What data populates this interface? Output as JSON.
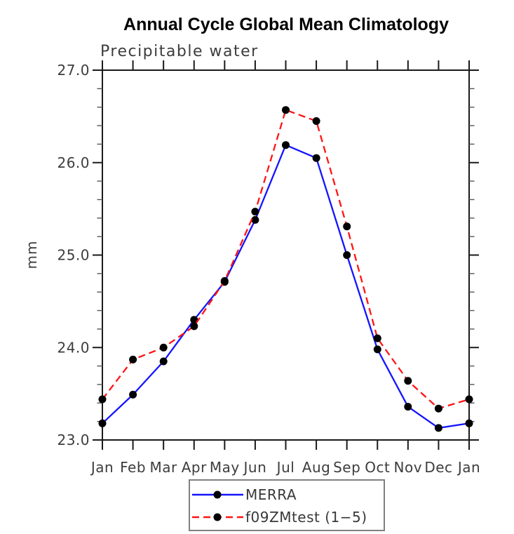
{
  "chart_data": {
    "type": "line",
    "title": "Annual Cycle Global Mean Climatology",
    "subtitle": "Precipitable water",
    "ylabel": "mm",
    "xlabel": "",
    "categories": [
      "Jan",
      "Feb",
      "Mar",
      "Apr",
      "May",
      "Jun",
      "Jul",
      "Aug",
      "Sep",
      "Oct",
      "Nov",
      "Dec",
      "Jan"
    ],
    "ylim": [
      23.0,
      27.0
    ],
    "yticks": [
      23.0,
      24.0,
      25.0,
      26.0,
      27.0
    ],
    "ytick_labels": [
      "23.0",
      "24.0",
      "25.0",
      "26.0",
      "27.0"
    ],
    "ytick_minor_step": 0.2,
    "grid": false,
    "frame": "box-with-outward-ticks",
    "legend_position": "bottom-center",
    "series": [
      {
        "name": "MERRA",
        "color": "#1414ff",
        "style": "solid",
        "marker": "filled-circle",
        "marker_color": "#000000",
        "values": [
          23.18,
          23.49,
          23.85,
          24.3,
          24.71,
          25.38,
          26.19,
          26.05,
          25.0,
          23.98,
          23.36,
          23.13,
          23.18
        ]
      },
      {
        "name": "f09ZMtest (1−5)",
        "color": "#ff1414",
        "style": "dashed",
        "marker": "filled-circle",
        "marker_color": "#000000",
        "values": [
          23.44,
          23.87,
          24.0,
          24.23,
          24.72,
          25.47,
          26.57,
          26.45,
          25.31,
          24.1,
          23.64,
          23.34,
          23.44
        ]
      }
    ]
  },
  "colors": {
    "axis": "#1a1a1a",
    "minor_tick": "#555555",
    "text": "#3d3d3d",
    "title": "#000000",
    "legend_border": "#808080",
    "background": "#ffffff"
  }
}
